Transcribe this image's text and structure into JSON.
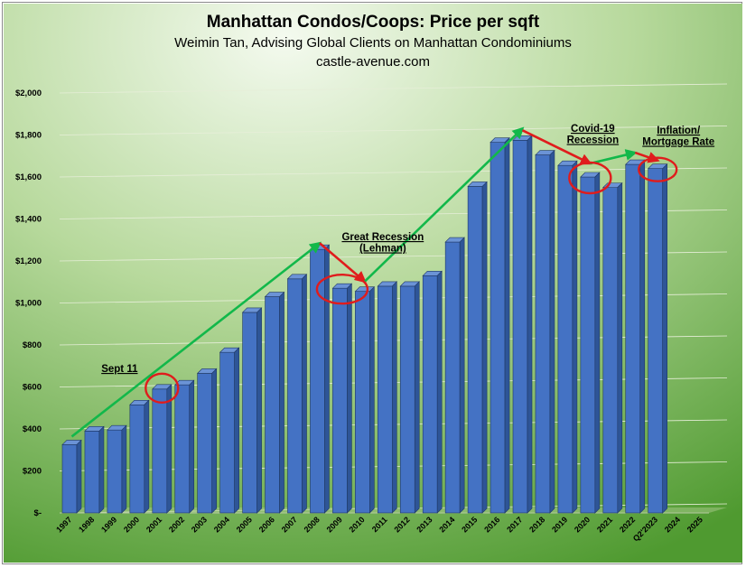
{
  "chart_data": {
    "type": "bar",
    "title": "Manhattan Condos/Coops: Price per sqft",
    "subtitle": "Weimin Tan, Advising Global Clients on Manhattan Condominiums",
    "source": "castle-avenue.com",
    "categories": [
      "1997",
      "1998",
      "1999",
      "2000",
      "2001",
      "2002",
      "2003",
      "2004",
      "2005",
      "2006",
      "2007",
      "2008",
      "2009",
      "2010",
      "2011",
      "2012",
      "2013",
      "2014",
      "2015",
      "2016",
      "2017",
      "2018",
      "2019",
      "2020",
      "2021",
      "2022",
      "Q2'2023",
      "2024",
      "2025"
    ],
    "values": [
      325,
      390,
      395,
      515,
      590,
      610,
      665,
      765,
      955,
      1030,
      1115,
      1255,
      1070,
      1055,
      1080,
      1080,
      1130,
      1290,
      1555,
      1765,
      1775,
      1705,
      1655,
      1600,
      1550,
      1660,
      1640,
      null,
      null
    ],
    "ylim": [
      0,
      2000
    ],
    "yticks": [
      "$-",
      "$200",
      "$400",
      "$600",
      "$800",
      "$1,000",
      "$1,200",
      "$1,400",
      "$1,600",
      "$1,800",
      "$2,000"
    ],
    "grid": true,
    "bar_color": "#4472c4",
    "background_colors": [
      "#f2f9ec",
      "#5da33b"
    ],
    "annotations": [
      {
        "lines": [
          "Sept 11"
        ]
      },
      {
        "lines": [
          "Great Recession",
          "(Lehman)"
        ]
      },
      {
        "lines": [
          "Covid-19",
          "Recession"
        ]
      },
      {
        "lines": [
          "Inflation/",
          "Mortgage Rate"
        ]
      }
    ],
    "up_arrow_color": "#12b84a",
    "down_arrow_color": "#e01c1c",
    "circle_color": "#e01c1c"
  }
}
